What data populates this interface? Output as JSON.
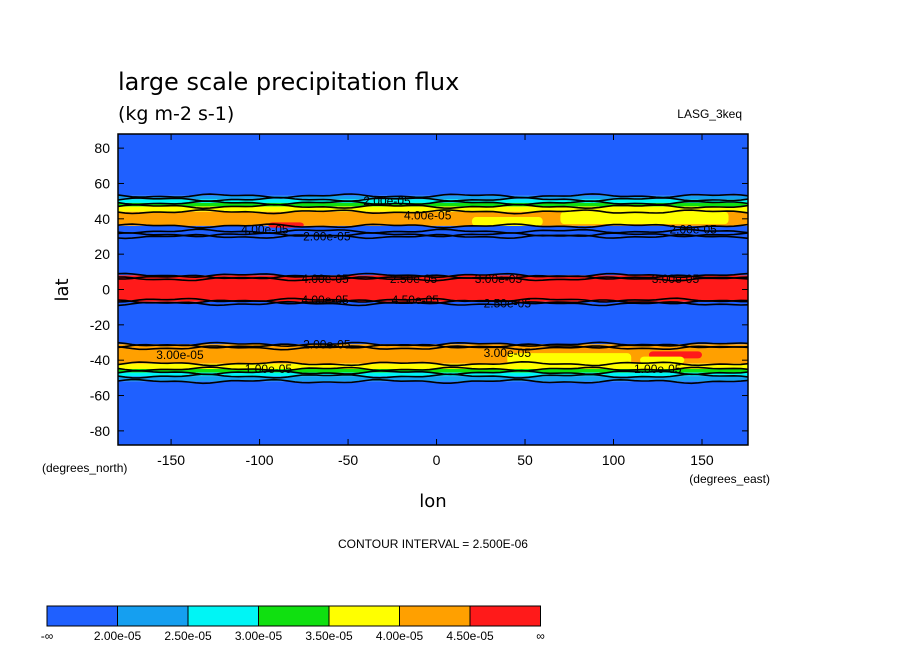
{
  "chart_data": {
    "type": "heatmap",
    "title": "large scale precipitation flux",
    "subtitle": "(kg m-2 s-1)",
    "dataset": "LASG_3keq",
    "xlabel": "lon",
    "ylabel": "lat",
    "x_unit_label": "(degrees_east)",
    "y_unit_label": "(degrees_north)",
    "xlim": [
      -180,
      176
    ],
    "ylim": [
      -88,
      88
    ],
    "x_ticks": [
      -150,
      -100,
      -50,
      0,
      50,
      100,
      150
    ],
    "y_ticks": [
      80,
      60,
      40,
      20,
      0,
      -20,
      -40,
      -60,
      -80
    ],
    "contour_interval_text": "CONTOUR INTERVAL = 2.500E-06",
    "colorbar": {
      "levels": [
        "-∞",
        "2.00e-05",
        "2.50e-05",
        "3.00e-05",
        "3.50e-05",
        "4.00e-05",
        "4.50e-05",
        "∞"
      ],
      "colors": [
        "#1f60ff",
        "#159ff0",
        "#00f5f5",
        "#10e010",
        "#ffff00",
        "#ffa000",
        "#ff1a1a"
      ]
    },
    "bands": [
      {
        "lat_min": 53,
        "lat_max": 88,
        "level": 0
      },
      {
        "lat_min": 51,
        "lat_max": 53,
        "level": 1
      },
      {
        "lat_min": 49,
        "lat_max": 51,
        "level": 2
      },
      {
        "lat_min": 47,
        "lat_max": 49,
        "level": 3
      },
      {
        "lat_min": 44,
        "lat_max": 47,
        "level": 4
      },
      {
        "lat_min": 36,
        "lat_max": 44,
        "level": 5
      },
      {
        "lat_min": 30,
        "lat_max": 36,
        "level": 0
      },
      {
        "lat_min": 8,
        "lat_max": 30,
        "level": 0
      },
      {
        "lat_min": -7,
        "lat_max": 8,
        "level": 6
      },
      {
        "lat_min": -31,
        "lat_max": -7,
        "level": 0
      },
      {
        "lat_min": -42,
        "lat_max": -31,
        "level": 5
      },
      {
        "lat_min": -45,
        "lat_max": -42,
        "level": 4
      },
      {
        "lat_min": -47,
        "lat_max": -45,
        "level": 3
      },
      {
        "lat_min": -49,
        "lat_max": -47,
        "level": 2
      },
      {
        "lat_min": -52,
        "lat_max": -49,
        "level": 1
      },
      {
        "lat_min": -88,
        "lat_max": -52,
        "level": 0
      }
    ],
    "patches": [
      {
        "lon_min": 20,
        "lon_max": 60,
        "lat_min": 36,
        "lat_max": 41,
        "level": 4
      },
      {
        "lon_min": 70,
        "lon_max": 165,
        "lat_min": 37,
        "lat_max": 44,
        "level": 4
      },
      {
        "lon_min": -95,
        "lon_max": -75,
        "lat_min": 35,
        "lat_max": 38,
        "level": 6
      },
      {
        "lon_min": 40,
        "lon_max": 110,
        "lat_min": -43,
        "lat_max": -36,
        "level": 4
      },
      {
        "lon_min": 120,
        "lon_max": 150,
        "lat_min": -39,
        "lat_max": -35,
        "level": 6
      },
      {
        "lon_min": 115,
        "lon_max": 140,
        "lat_min": -42,
        "lat_max": -38,
        "level": 4
      }
    ],
    "contour_lines_lat": [
      53,
      51,
      49,
      47,
      44,
      36,
      33,
      31,
      30,
      8,
      7,
      6,
      -6,
      -7,
      -8,
      -31,
      -32,
      -33,
      -42,
      -45,
      -47,
      -49,
      -52
    ],
    "contour_labels": [
      {
        "text": "2.00e-05",
        "lon": -28,
        "lat": 50
      },
      {
        "text": "4.00e-05",
        "lon": -5,
        "lat": 42
      },
      {
        "text": "4.00e-05",
        "lon": -97,
        "lat": 34
      },
      {
        "text": "2.00e-05",
        "lon": -62,
        "lat": 30
      },
      {
        "text": "2.00e-05",
        "lon": 145,
        "lat": 34
      },
      {
        "text": "4.00e-05",
        "lon": -63,
        "lat": 6
      },
      {
        "text": "2.50e-05",
        "lon": -13,
        "lat": 6
      },
      {
        "text": "3.00e-05",
        "lon": 35,
        "lat": 6
      },
      {
        "text": "3.00e-05",
        "lon": 135,
        "lat": 6
      },
      {
        "text": "4.00e-05",
        "lon": -63,
        "lat": -6
      },
      {
        "text": "4.50e-05",
        "lon": -12,
        "lat": -6
      },
      {
        "text": "2.50e-05",
        "lon": 40,
        "lat": -8
      },
      {
        "text": "2.00e-05",
        "lon": -62,
        "lat": -31
      },
      {
        "text": "3.00e-05",
        "lon": -145,
        "lat": -37
      },
      {
        "text": "3.00e-05",
        "lon": 40,
        "lat": -36
      },
      {
        "text": "1.00e-05",
        "lon": -95,
        "lat": -45
      },
      {
        "text": "1.00e-05",
        "lon": 125,
        "lat": -45
      }
    ]
  }
}
